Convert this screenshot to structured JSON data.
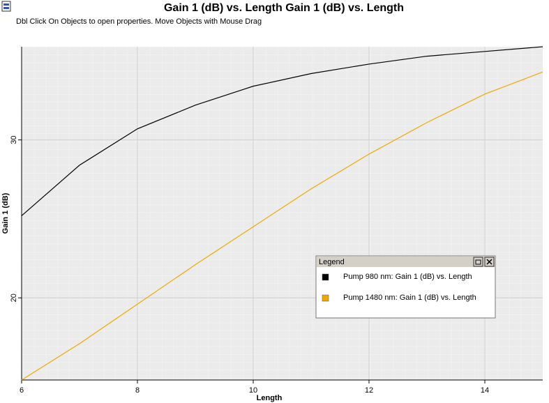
{
  "chart_data": {
    "type": "line",
    "title": "Gain 1 (dB) vs. Length Gain 1 (dB) vs. Length",
    "subtitle": "Dbl Click On Objects to open properties.  Move Objects with Mouse Drag",
    "x_label": "Length",
    "y_label": "Gain 1 (dB)",
    "x": [
      6,
      7,
      8,
      9,
      10,
      11,
      12,
      13,
      14,
      15
    ],
    "series": [
      {
        "name": "Pump 980 nm: Gain 1 (dB) vs. Length",
        "color": "#000000",
        "values": [
          25.2,
          28.4,
          30.7,
          32.2,
          33.4,
          34.2,
          34.8,
          35.3,
          35.6,
          35.9
        ]
      },
      {
        "name": "Pump 1480 nm: Gain 1 (dB) vs. Length",
        "color": "#f0a800",
        "values": [
          14.8,
          17.1,
          19.6,
          22.1,
          24.5,
          26.9,
          29.1,
          31.1,
          32.9,
          34.3
        ]
      }
    ],
    "xlim": [
      6,
      15
    ],
    "xticks": [
      6,
      8,
      10,
      12,
      14
    ],
    "ylim": [
      14.8,
      35.9
    ],
    "yticks": [
      20,
      30
    ],
    "grid": true,
    "legend_title": "Legend"
  }
}
